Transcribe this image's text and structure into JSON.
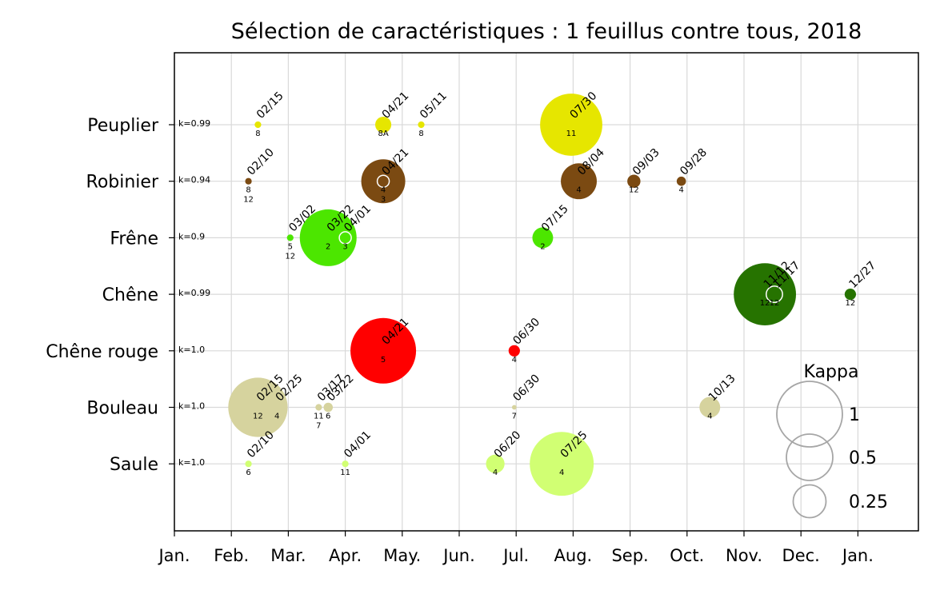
{
  "chart_data": {
    "type": "scatter",
    "title": "Sélection de caractéristiques : 1 feuillus contre tous, 2018",
    "xlabel": "",
    "ylabel": "",
    "x_ticks": [
      "Jan.",
      "Feb.",
      "Mar.",
      "Apr.",
      "May.",
      "Jun.",
      "Jul.",
      "Aug.",
      "Sep.",
      "Oct.",
      "Nov.",
      "Dec.",
      "Jan."
    ],
    "grid": true,
    "legend": {
      "title": "Kappa",
      "position": "bottom-right",
      "entries": [
        {
          "label": "1",
          "value": 1
        },
        {
          "label": "0.5",
          "value": 0.5
        },
        {
          "label": "0.25",
          "value": 0.25
        }
      ]
    },
    "categories": [
      "Peuplier",
      "Robinier",
      "Frêne",
      "Chêne",
      "Chêne rouge",
      "Bouleau",
      "Saule"
    ],
    "series": [
      {
        "name": "Peuplier",
        "color": "#e6e600",
        "kappa": "k=0.99",
        "points": [
          {
            "date": "2018-02-15",
            "label": "02/15",
            "value": 0.01,
            "bands": [
              "8"
            ]
          },
          {
            "date": "2018-04-21",
            "label": "04/21",
            "value": 0.06,
            "bands": [
              "8A"
            ]
          },
          {
            "date": "2018-05-11",
            "label": "05/11",
            "value": 0.01,
            "bands": [
              "8"
            ]
          },
          {
            "date": "2018-07-30",
            "label": "07/30",
            "value": 0.9,
            "bands": [
              "11"
            ]
          }
        ]
      },
      {
        "name": "Robinier",
        "color": "#7b4a12",
        "kappa": "k=0.94",
        "points": [
          {
            "date": "2018-02-10",
            "label": "02/10",
            "value": 0.01,
            "bands": [
              "8",
              "12"
            ]
          },
          {
            "date": "2018-04-21",
            "label": "04/21",
            "value": 0.45,
            "bands": [
              "4",
              "3"
            ]
          },
          {
            "date": "2018-08-04",
            "label": "08/04",
            "value": 0.3,
            "bands": [
              "4"
            ]
          },
          {
            "date": "2018-09-03",
            "label": "09/03",
            "value": 0.04,
            "bands": [
              "12"
            ]
          },
          {
            "date": "2018-09-28",
            "label": "09/28",
            "value": 0.02,
            "bands": [
              "4"
            ]
          }
        ]
      },
      {
        "name": "Frêne",
        "color": "#4ce600",
        "kappa": "k=0.9",
        "points": [
          {
            "date": "2018-03-02",
            "label": "03/02",
            "value": 0.01,
            "bands": [
              "5",
              "12"
            ]
          },
          {
            "date": "2018-03-22",
            "label": "03/22",
            "value": 0.75,
            "bands": [
              "2"
            ]
          },
          {
            "date": "2018-04-01",
            "label": "04/01",
            "value": 0.05,
            "bands": [
              "3"
            ]
          },
          {
            "date": "2018-07-15",
            "label": "07/15",
            "value": 0.1,
            "bands": [
              "2"
            ]
          }
        ]
      },
      {
        "name": "Chêne",
        "color": "#267300",
        "kappa": "k=0.99",
        "points": [
          {
            "date": "2018-11-12",
            "label": "11/12",
            "value": 0.9,
            "bands": [
              "12"
            ]
          },
          {
            "date": "2018-11-17",
            "label": "11/17",
            "value": 0.04,
            "bands": [
              "12"
            ]
          },
          {
            "date": "2018-12-27",
            "label": "12/27",
            "value": 0.03,
            "bands": [
              "12"
            ]
          }
        ]
      },
      {
        "name": "Chêne rouge",
        "color": "#ff0000",
        "kappa": "k=1.0",
        "points": [
          {
            "date": "2018-04-21",
            "label": "04/21",
            "value": 1.0,
            "bands": [
              "5"
            ]
          },
          {
            "date": "2018-06-30",
            "label": "06/30",
            "value": 0.03,
            "bands": [
              "4"
            ]
          }
        ]
      },
      {
        "name": "Bouleau",
        "color": "#d6d39e",
        "kappa": "k=1.0",
        "points": [
          {
            "date": "2018-02-15",
            "label": "02/15",
            "value": 0.82,
            "bands": [
              "12"
            ]
          },
          {
            "date": "2018-02-25",
            "label": "02/25",
            "value": 0.08,
            "bands": [
              "4"
            ]
          },
          {
            "date": "2018-03-17",
            "label": "03/17",
            "value": 0.01,
            "bands": [
              "11",
              "7"
            ]
          },
          {
            "date": "2018-03-22",
            "label": "03/22",
            "value": 0.02,
            "bands": [
              "6"
            ]
          },
          {
            "date": "2018-06-30",
            "label": "06/30",
            "value": 0.005,
            "bands": [
              "7"
            ]
          },
          {
            "date": "2018-10-13",
            "label": "10/13",
            "value": 0.1,
            "bands": [
              "4"
            ]
          }
        ]
      },
      {
        "name": "Saule",
        "color": "#d1ff73",
        "kappa": "k=1.0",
        "points": [
          {
            "date": "2018-02-10",
            "label": "02/10",
            "value": 0.01,
            "bands": [
              "6"
            ]
          },
          {
            "date": "2018-04-01",
            "label": "04/01",
            "value": 0.01,
            "bands": [
              "11"
            ]
          },
          {
            "date": "2018-06-20",
            "label": "06/20",
            "value": 0.08,
            "bands": [
              "4"
            ]
          },
          {
            "date": "2018-07-25",
            "label": "07/25",
            "value": 0.95,
            "bands": [
              "4"
            ]
          }
        ]
      }
    ],
    "highlights": [
      {
        "category": "Robinier",
        "date": "2018-04-21"
      },
      {
        "category": "Frêne",
        "date": "2018-04-01"
      },
      {
        "category": "Chêne",
        "date": "2018-11-17"
      }
    ]
  }
}
